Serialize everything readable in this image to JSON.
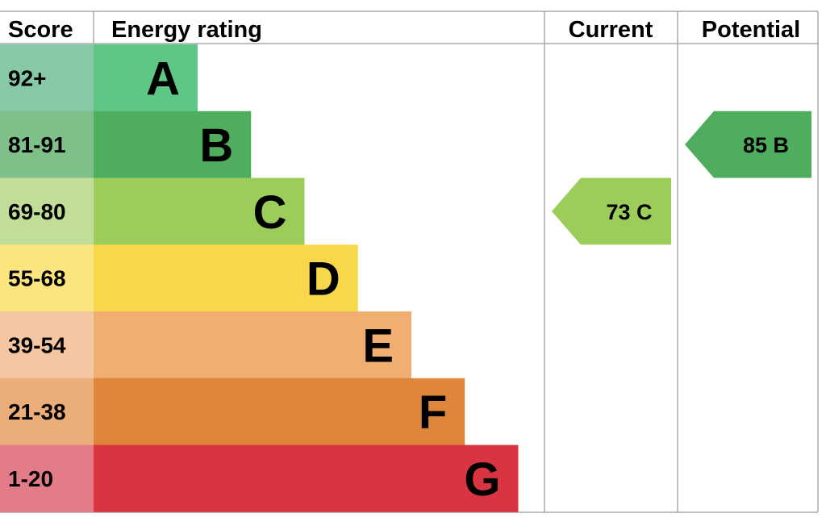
{
  "header": {
    "score": "Score",
    "energy_rating": "Energy rating",
    "current": "Current",
    "potential": "Potential"
  },
  "chart_data": {
    "type": "bar",
    "categories": [
      "A",
      "B",
      "C",
      "D",
      "E",
      "F",
      "G"
    ],
    "score_ranges": [
      "92+",
      "81-91",
      "69-80",
      "55-68",
      "39-54",
      "21-38",
      "1-20"
    ],
    "band_colors": [
      "#5ec785",
      "#4fad5e",
      "#9ccc5a",
      "#f7d84b",
      "#f0ae70",
      "#e0863a",
      "#d93442"
    ],
    "score_colors": [
      "#87c8a6",
      "#7fc08a",
      "#c0de98",
      "#fbe57e",
      "#f4c6a2",
      "#ebae7a",
      "#e37b89"
    ],
    "current": {
      "score": 73,
      "band": "C",
      "label": "73 C",
      "color": "#9ccc5a"
    },
    "potential": {
      "score": 85,
      "band": "B",
      "label": "85 B",
      "color": "#4fad5e"
    }
  }
}
